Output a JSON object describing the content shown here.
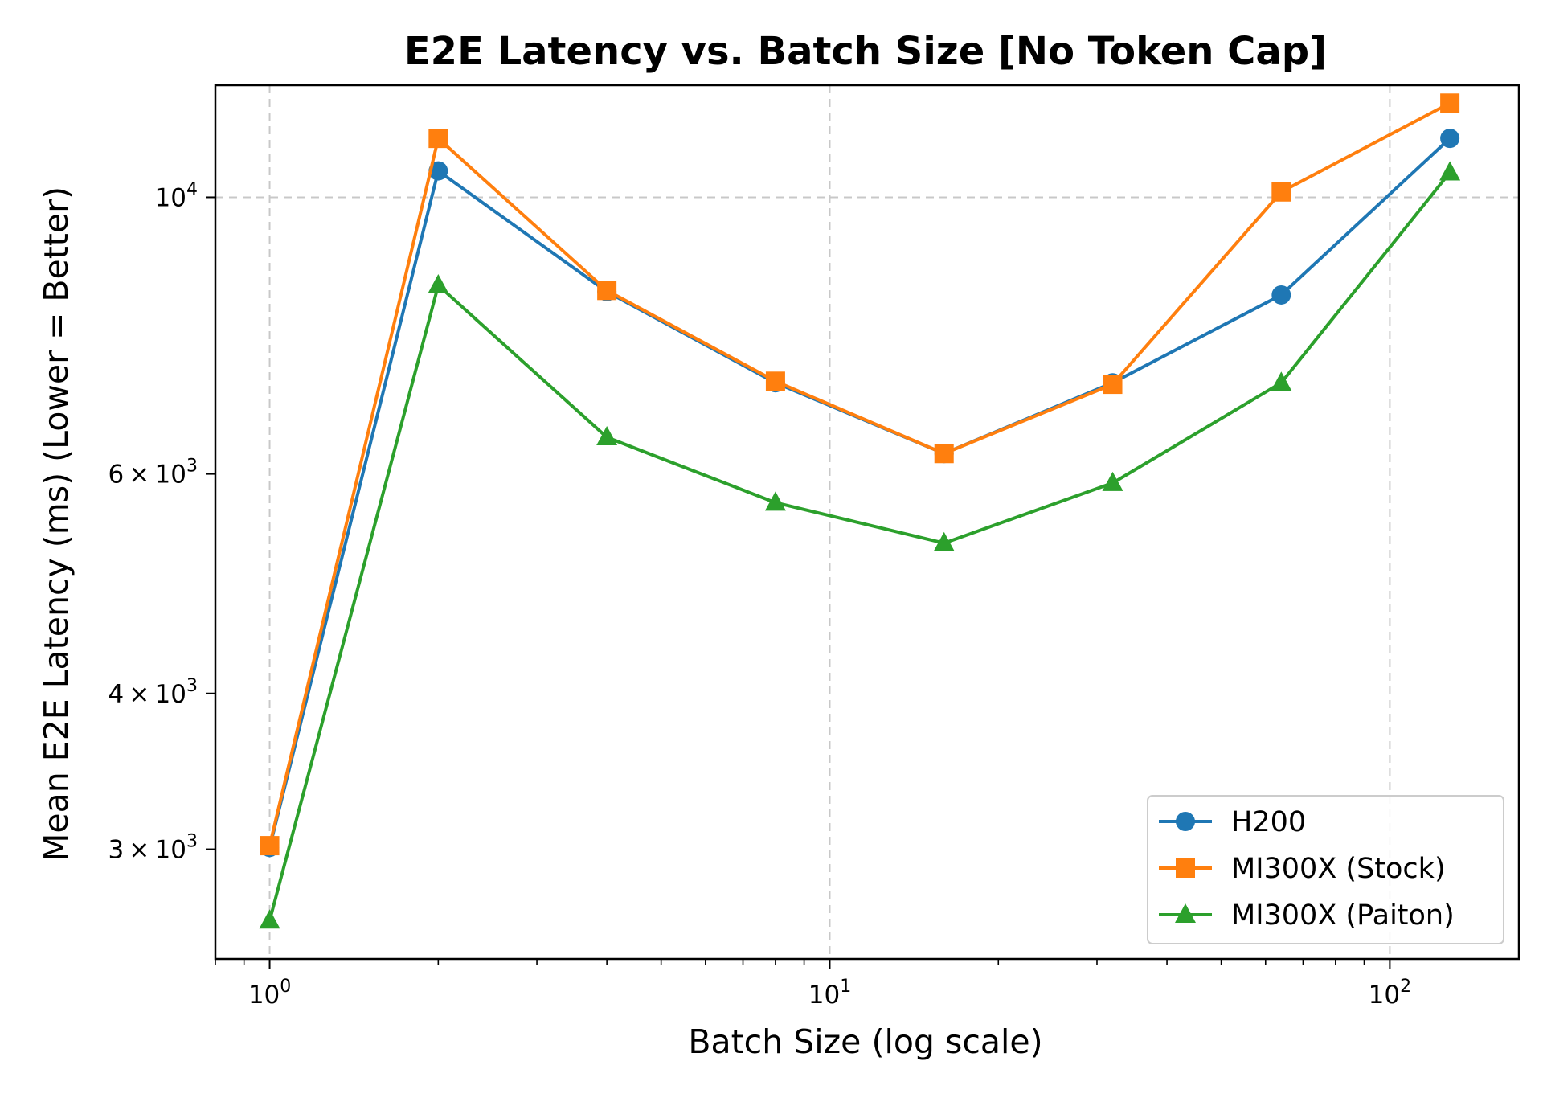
{
  "chart_data": {
    "type": "line",
    "title": "E2E Latency vs. Batch Size [No Token Cap]",
    "xlabel": "Batch Size (log scale)",
    "ylabel": "Mean E2E Latency (ms) (Lower = Better)",
    "x_scale": "log",
    "y_scale": "log",
    "xlim": [
      0.8,
      170
    ],
    "ylim": [
      2450,
      12300
    ],
    "x_ticks": [
      {
        "value": 1,
        "base": "10",
        "exp": "0"
      },
      {
        "value": 10,
        "base": "10",
        "exp": "1"
      },
      {
        "value": 100,
        "base": "10",
        "exp": "2"
      }
    ],
    "y_ticks": [
      {
        "value": 3000,
        "mant": "3",
        "base": "10",
        "exp": "3",
        "gridline": false
      },
      {
        "value": 4000,
        "mant": "4",
        "base": "10",
        "exp": "3",
        "gridline": false
      },
      {
        "value": 6000,
        "mant": "6",
        "base": "10",
        "exp": "3",
        "gridline": false
      },
      {
        "value": 10000,
        "mant": "",
        "base": "10",
        "exp": "4",
        "gridline": true
      }
    ],
    "grid": true,
    "legend_position": "lower-right",
    "x": [
      1,
      2,
      4,
      8,
      16,
      32,
      64,
      128
    ],
    "series": [
      {
        "name": "H200",
        "color": "#1f77b4",
        "marker": "circle",
        "values": [
          3010,
          10500,
          8400,
          7100,
          6230,
          7100,
          8350,
          11150
        ]
      },
      {
        "name": "MI300X (Stock)",
        "color": "#ff7f0e",
        "marker": "square",
        "values": [
          3020,
          11150,
          8420,
          7120,
          6230,
          7080,
          10100,
          11900
        ]
      },
      {
        "name": "MI300X (Paiton)",
        "color": "#2ca02c",
        "marker": "triangle",
        "values": [
          2630,
          8500,
          6420,
          5690,
          5280,
          5900,
          7100,
          10470
        ]
      }
    ]
  }
}
